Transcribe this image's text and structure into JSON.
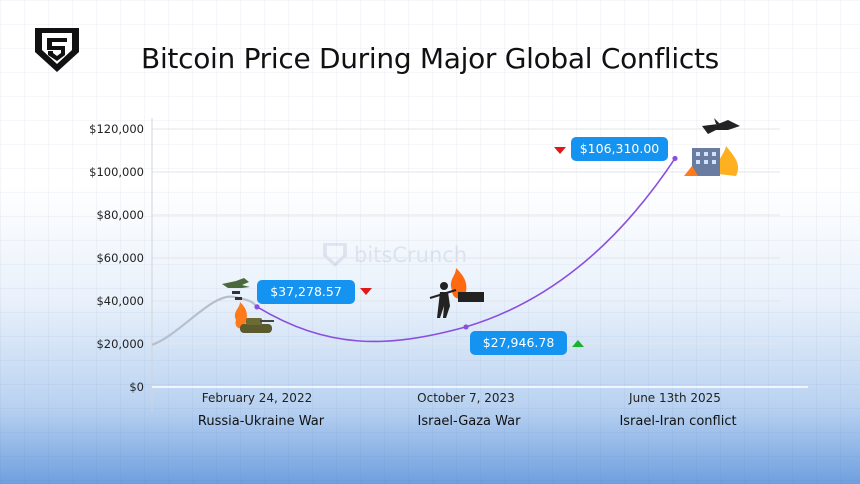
{
  "title": "Bitcoin Price During Major Global Conflicts",
  "brand": {
    "watermark_text": "bitsCrunch"
  },
  "colors": {
    "line": "#8a4fe0",
    "history_line": "#b6bfcc",
    "callout": "#1593f0",
    "down": "#e01818",
    "up": "#18b52c"
  },
  "chart_data": {
    "type": "line",
    "title": "Bitcoin Price During Major Global Conflicts",
    "y_ticks": [
      "$0",
      "$20,000",
      "$40,000",
      "$60,000",
      "$80,000",
      "$100,000",
      "$120,000"
    ],
    "ylim": [
      0,
      120000
    ],
    "x": [
      "February 24, 2022",
      "October 7, 2023",
      "June 13th 2025"
    ],
    "events": [
      "Russia-Ukraine War",
      "Israel-Gaza War",
      "Israel-Iran conflict"
    ],
    "values": [
      37278.57,
      27946.78,
      106310.0
    ],
    "value_labels": [
      "$37,278.57",
      "$27,946.78",
      "$106,310.00"
    ],
    "trends": [
      "down",
      "up",
      "down"
    ],
    "grid": true
  }
}
